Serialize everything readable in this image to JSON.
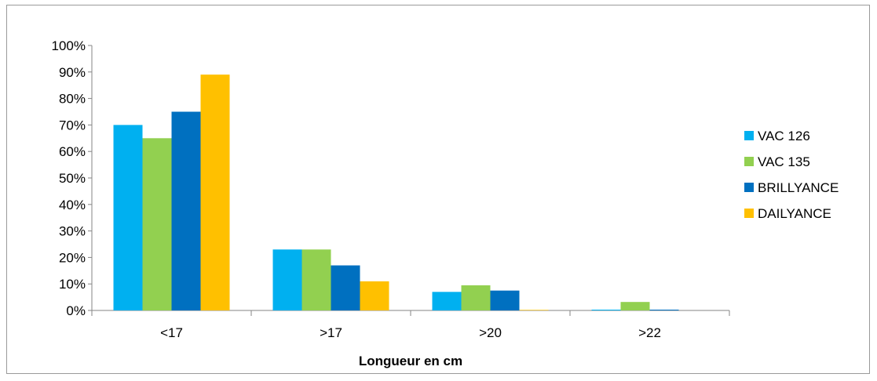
{
  "chart_data": {
    "type": "bar",
    "title": "",
    "xlabel": "Longueur en cm",
    "ylabel": "",
    "categories": [
      "<17",
      ">17",
      ">20",
      ">22"
    ],
    "ylim": [
      0,
      1
    ],
    "y_ticks": [
      "0%",
      "10%",
      "20%",
      "30%",
      "40%",
      "50%",
      "60%",
      "70%",
      "80%",
      "90%",
      "100%"
    ],
    "grid": false,
    "legend_position": "right",
    "series": [
      {
        "name": "VAC 126",
        "color": "#00b0f0",
        "values": [
          0.7,
          0.23,
          0.07,
          0.003
        ]
      },
      {
        "name": "VAC 135",
        "color": "#92d050",
        "values": [
          0.65,
          0.23,
          0.095,
          0.032
        ]
      },
      {
        "name": "BRILLYANCE",
        "color": "#0070c0",
        "values": [
          0.75,
          0.17,
          0.075,
          0.003
        ]
      },
      {
        "name": "DAILYANCE",
        "color": "#ffc000",
        "values": [
          0.89,
          0.11,
          0.002,
          0.0
        ]
      }
    ]
  }
}
